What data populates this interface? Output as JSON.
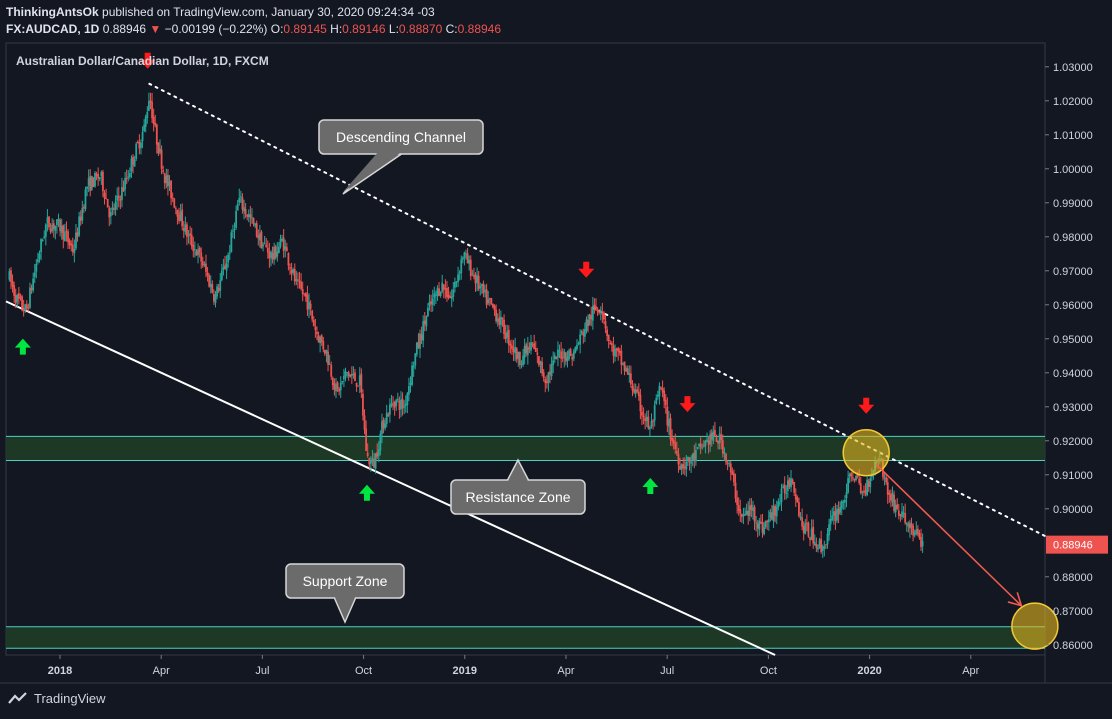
{
  "header": {
    "publisher": "ThinkingAntsOk",
    "published_text": "published on TradingView.com, January 30, 2020 09:24:34 -03",
    "symbol": "FX:AUDCAD, 1D",
    "last": "0.88946",
    "change_arrow": "▼",
    "change": "−0.00199 (−0.22%)",
    "o_label": "O:",
    "o": "0.89145",
    "h_label": "H:",
    "h": "0.89146",
    "l_label": "L:",
    "l": "0.88870",
    "c_label": "C:",
    "c": "0.88946"
  },
  "footer": {
    "brand": "TradingView"
  },
  "colors": {
    "background": "#131722",
    "up": "#26a69a",
    "down": "#ef5350",
    "zone_fill": "#1e3a26",
    "zone_line": "#4dd0c4",
    "price_badge": "#ef5350",
    "highlight": "#e3b51e",
    "green_arrow": "#00e640",
    "red_arrow": "#ff1a1a"
  },
  "chart_data": {
    "type": "candlestick",
    "title": "Australian Dollar/Canadian Dollar, 1D, FXCM",
    "y_ticks": [
      "1.03000",
      "1.02000",
      "1.01000",
      "1.00000",
      "0.99000",
      "0.98000",
      "0.97000",
      "0.96000",
      "0.95000",
      "0.94000",
      "0.93000",
      "0.92000",
      "0.91000",
      "0.90000",
      "0.88000",
      "0.87000",
      "0.86000"
    ],
    "x_ticks": [
      {
        "label": "2018",
        "t": 0,
        "bold": true
      },
      {
        "label": "Apr",
        "t": 3,
        "bold": false
      },
      {
        "label": "Jul",
        "t": 6,
        "bold": false
      },
      {
        "label": "Oct",
        "t": 9,
        "bold": false
      },
      {
        "label": "2019",
        "t": 12,
        "bold": true
      },
      {
        "label": "Apr",
        "t": 15,
        "bold": false
      },
      {
        "label": "Jul",
        "t": 18,
        "bold": false
      },
      {
        "label": "Oct",
        "t": 21,
        "bold": false
      },
      {
        "label": "2020",
        "t": 24,
        "bold": true
      },
      {
        "label": "Apr",
        "t": 27,
        "bold": false
      }
    ],
    "ylim": [
      0.857,
      1.037
    ],
    "xlim_months": [
      -1.6,
      29.2
    ],
    "last_price": "0.88946",
    "price_path": [
      [
        -1.5,
        0.968
      ],
      [
        -1.3,
        0.962
      ],
      [
        -1.0,
        0.958
      ],
      [
        -0.7,
        0.972
      ],
      [
        -0.4,
        0.984
      ],
      [
        0.0,
        0.983
      ],
      [
        0.4,
        0.976
      ],
      [
        0.8,
        0.995
      ],
      [
        1.2,
        0.998
      ],
      [
        1.5,
        0.986
      ],
      [
        1.9,
        0.995
      ],
      [
        2.2,
        1.004
      ],
      [
        2.5,
        1.012
      ],
      [
        2.65,
        1.022
      ],
      [
        2.8,
        1.012
      ],
      [
        3.1,
        0.998
      ],
      [
        3.4,
        0.99
      ],
      [
        3.8,
        0.98
      ],
      [
        4.2,
        0.973
      ],
      [
        4.6,
        0.962
      ],
      [
        5.0,
        0.975
      ],
      [
        5.3,
        0.991
      ],
      [
        5.6,
        0.986
      ],
      [
        6.0,
        0.978
      ],
      [
        6.3,
        0.974
      ],
      [
        6.6,
        0.979
      ],
      [
        7.0,
        0.966
      ],
      [
        7.3,
        0.962
      ],
      [
        7.6,
        0.952
      ],
      [
        7.9,
        0.946
      ],
      [
        8.2,
        0.934
      ],
      [
        8.5,
        0.94
      ],
      [
        8.9,
        0.937
      ],
      [
        9.1,
        0.915
      ],
      [
        9.3,
        0.913
      ],
      [
        9.6,
        0.926
      ],
      [
        9.9,
        0.932
      ],
      [
        10.2,
        0.93
      ],
      [
        10.5,
        0.944
      ],
      [
        10.9,
        0.958
      ],
      [
        11.3,
        0.966
      ],
      [
        11.6,
        0.962
      ],
      [
        11.95,
        0.975
      ],
      [
        12.3,
        0.968
      ],
      [
        12.6,
        0.962
      ],
      [
        12.9,
        0.958
      ],
      [
        13.2,
        0.952
      ],
      [
        13.6,
        0.944
      ],
      [
        14.0,
        0.948
      ],
      [
        14.4,
        0.938
      ],
      [
        14.8,
        0.946
      ],
      [
        15.2,
        0.945
      ],
      [
        15.5,
        0.952
      ],
      [
        15.8,
        0.958
      ],
      [
        16.05,
        0.96
      ],
      [
        16.3,
        0.948
      ],
      [
        16.6,
        0.944
      ],
      [
        16.9,
        0.938
      ],
      [
        17.2,
        0.93
      ],
      [
        17.5,
        0.923
      ],
      [
        17.8,
        0.936
      ],
      [
        18.1,
        0.922
      ],
      [
        18.4,
        0.913
      ],
      [
        18.7,
        0.914
      ],
      [
        19.0,
        0.918
      ],
      [
        19.3,
        0.921
      ],
      [
        19.6,
        0.92
      ],
      [
        19.9,
        0.91
      ],
      [
        20.2,
        0.897
      ],
      [
        20.5,
        0.9
      ],
      [
        20.8,
        0.894
      ],
      [
        21.1,
        0.898
      ],
      [
        21.4,
        0.904
      ],
      [
        21.7,
        0.91
      ],
      [
        22.0,
        0.895
      ],
      [
        22.3,
        0.892
      ],
      [
        22.6,
        0.888
      ],
      [
        22.9,
        0.897
      ],
      [
        23.2,
        0.902
      ],
      [
        23.5,
        0.911
      ],
      [
        23.8,
        0.904
      ],
      [
        24.1,
        0.912
      ],
      [
        24.3,
        0.916
      ],
      [
        24.5,
        0.906
      ],
      [
        24.8,
        0.9
      ],
      [
        25.1,
        0.896
      ],
      [
        25.4,
        0.892
      ],
      [
        25.6,
        0.889
      ]
    ],
    "descending_channel_line": {
      "from": [
        2.65,
        1.025
      ],
      "to": [
        29.2,
        0.892
      ]
    },
    "support_trend_line": {
      "from": [
        -1.6,
        0.961
      ],
      "to": [
        21.2,
        0.857
      ]
    },
    "resistance_zone": [
      0.9142,
      0.9213
    ],
    "support_zone": [
      0.859,
      0.8653
    ],
    "projection_arrow": {
      "from": [
        24.2,
        0.913
      ],
      "to": [
        28.5,
        0.8715
      ]
    },
    "highlight_circles": [
      {
        "t": 23.9,
        "p": 0.9165
      },
      {
        "t": 28.9,
        "p": 0.8655
      }
    ],
    "red_arrows": [
      {
        "t": 2.6,
        "p": 1.0315
      },
      {
        "t": 15.6,
        "p": 0.97
      },
      {
        "t": 18.6,
        "p": 0.9305
      },
      {
        "t": 23.9,
        "p": 0.93
      }
    ],
    "green_arrows": [
      {
        "t": -1.1,
        "p": 0.948
      },
      {
        "t": 9.1,
        "p": 0.905
      },
      {
        "t": 17.5,
        "p": 0.907
      }
    ],
    "annotations": [
      {
        "text": "Descending Channel",
        "cx": 401,
        "cy": 137,
        "w": 164,
        "pointer": "down-left"
      },
      {
        "text": "Resistance Zone",
        "cx": 518,
        "cy": 497,
        "w": 134,
        "pointer": "up"
      },
      {
        "text": "Support Zone",
        "cx": 345,
        "cy": 581,
        "w": 118,
        "pointer": "down"
      }
    ]
  }
}
